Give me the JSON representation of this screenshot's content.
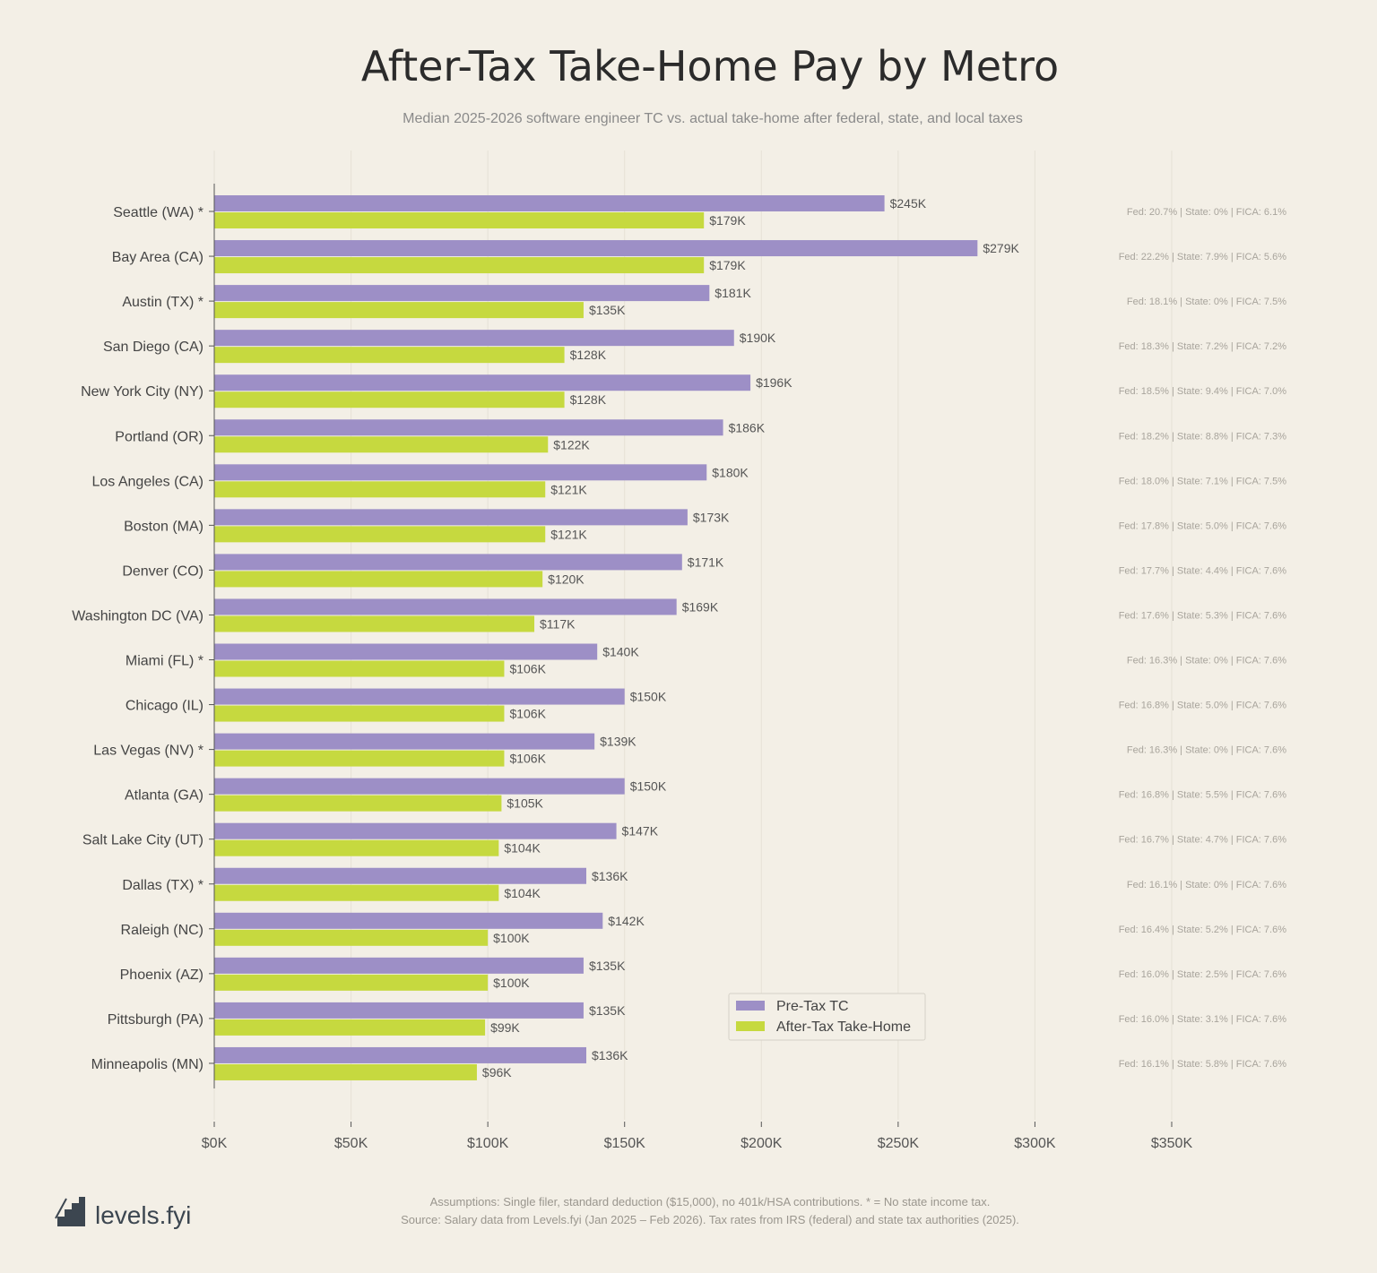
{
  "chart_data": {
    "type": "bar",
    "orientation": "horizontal",
    "title": "After-Tax Take-Home Pay by Metro",
    "subtitle": "Median 2025-2026 software engineer TC vs. actual take-home after federal, state, and local taxes",
    "categories": [
      "Seattle (WA) *",
      "Bay Area (CA)",
      "Austin (TX) *",
      "San Diego (CA)",
      "New York City (NY)",
      "Portland (OR)",
      "Los Angeles (CA)",
      "Boston (MA)",
      "Denver (CO)",
      "Washington DC (VA)",
      "Miami (FL) *",
      "Chicago (IL)",
      "Las Vegas (NV) *",
      "Atlanta (GA)",
      "Salt Lake City (UT)",
      "Dallas (TX) *",
      "Raleigh (NC)",
      "Phoenix (AZ)",
      "Pittsburgh (PA)",
      "Minneapolis (MN)"
    ],
    "series": [
      {
        "name": "Pre-Tax TC",
        "color": "#9d8fc6",
        "values": [
          245,
          279,
          181,
          190,
          196,
          186,
          180,
          173,
          171,
          169,
          140,
          150,
          139,
          150,
          147,
          136,
          142,
          135,
          135,
          136
        ],
        "labels": [
          "$245K",
          "$279K",
          "$181K",
          "$190K",
          "$196K",
          "$186K",
          "$180K",
          "$173K",
          "$171K",
          "$169K",
          "$140K",
          "$150K",
          "$139K",
          "$150K",
          "$147K",
          "$136K",
          "$142K",
          "$135K",
          "$135K",
          "$136K"
        ]
      },
      {
        "name": "After-Tax Take-Home",
        "color": "#c6d93f",
        "values": [
          179,
          179,
          135,
          128,
          128,
          122,
          121,
          121,
          120,
          117,
          106,
          106,
          106,
          105,
          104,
          104,
          100,
          100,
          99,
          96
        ],
        "labels": [
          "$179K",
          "$179K",
          "$135K",
          "$128K",
          "$128K",
          "$122K",
          "$121K",
          "$121K",
          "$120K",
          "$117K",
          "$106K",
          "$106K",
          "$106K",
          "$105K",
          "$104K",
          "$104K",
          "$100K",
          "$100K",
          "$99K",
          "$96K"
        ]
      }
    ],
    "annotations": [
      "Fed: 20.7% | State: 0% | FICA: 6.1%",
      "Fed: 22.2% | State: 7.9% | FICA: 5.6%",
      "Fed: 18.1% | State: 0% | FICA: 7.5%",
      "Fed: 18.3% | State: 7.2% | FICA: 7.2%",
      "Fed: 18.5% | State: 9.4% | FICA: 7.0%",
      "Fed: 18.2% | State: 8.8% | FICA: 7.3%",
      "Fed: 18.0% | State: 7.1% | FICA: 7.5%",
      "Fed: 17.8% | State: 5.0% | FICA: 7.6%",
      "Fed: 17.7% | State: 4.4% | FICA: 7.6%",
      "Fed: 17.6% | State: 5.3% | FICA: 7.6%",
      "Fed: 16.3% | State: 0% | FICA: 7.6%",
      "Fed: 16.8% | State: 5.0% | FICA: 7.6%",
      "Fed: 16.3% | State: 0% | FICA: 7.6%",
      "Fed: 16.8% | State: 5.5% | FICA: 7.6%",
      "Fed: 16.7% | State: 4.7% | FICA: 7.6%",
      "Fed: 16.1% | State: 0% | FICA: 7.6%",
      "Fed: 16.4% | State: 5.2% | FICA: 7.6%",
      "Fed: 16.0% | State: 2.5% | FICA: 7.6%",
      "Fed: 16.0% | State: 3.1% | FICA: 7.6%",
      "Fed: 16.1% | State: 5.8% | FICA: 7.6%"
    ],
    "xlim": [
      0,
      350
    ],
    "xticks": [
      0,
      50,
      100,
      150,
      200,
      250,
      300,
      350
    ],
    "xtick_labels": [
      "$0K",
      "$50K",
      "$100K",
      "$150K",
      "$200K",
      "$250K",
      "$300K",
      "$350K"
    ],
    "grid": true,
    "legend_position": "bottom-right"
  },
  "footer": {
    "line1": "Assumptions: Single filer, standard deduction ($15,000), no 401k/HSA contributions. * = No state income tax.",
    "line2": "Source: Salary data from Levels.fyi (Jan 2025 – Feb 2026). Tax rates from IRS (federal) and state tax authorities (2025).",
    "logo": "levels.fyi"
  },
  "colors": {
    "background": "#f3efe6",
    "pretax": "#9d8fc6",
    "aftertax": "#c6d93f"
  }
}
